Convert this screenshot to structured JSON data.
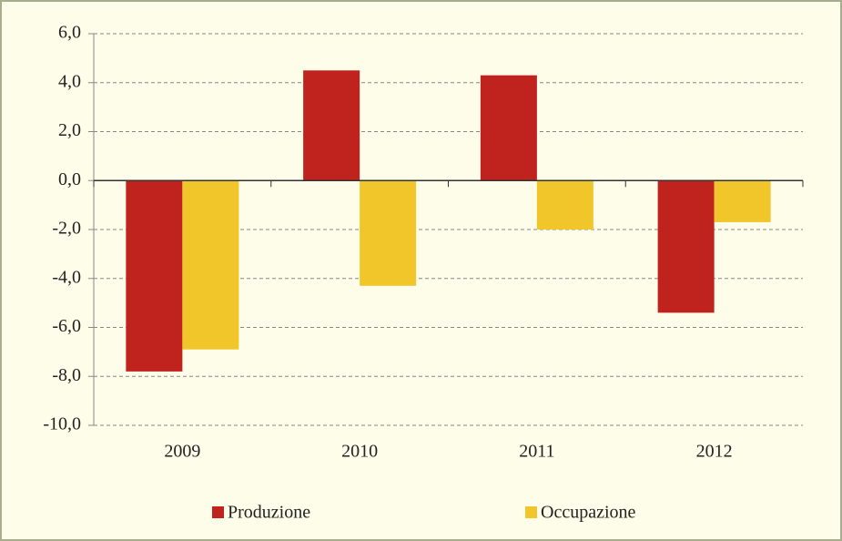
{
  "chart_data": {
    "type": "bar",
    "categories": [
      "2009",
      "2010",
      "2011",
      "2012"
    ],
    "series": [
      {
        "name": "Produzione",
        "color": "#c0231e",
        "values": [
          -7.8,
          4.5,
          4.3,
          -5.4
        ]
      },
      {
        "name": "Occupazione",
        "color": "#f0c62a",
        "values": [
          -6.9,
          -4.3,
          -2.0,
          -1.7
        ]
      }
    ],
    "ylim": [
      -10,
      6
    ],
    "yticks": [
      {
        "value": -10,
        "label": "-10,0"
      },
      {
        "value": -8,
        "label": "-8,0"
      },
      {
        "value": -6,
        "label": "-6,0"
      },
      {
        "value": -4,
        "label": "-4,0"
      },
      {
        "value": -2,
        "label": "-2,0"
      },
      {
        "value": 0,
        "label": "0,0"
      },
      {
        "value": 2,
        "label": "2,0"
      },
      {
        "value": 4,
        "label": "4,0"
      },
      {
        "value": 6,
        "label": "6,0"
      }
    ],
    "grid": true,
    "legend": "bottom"
  }
}
